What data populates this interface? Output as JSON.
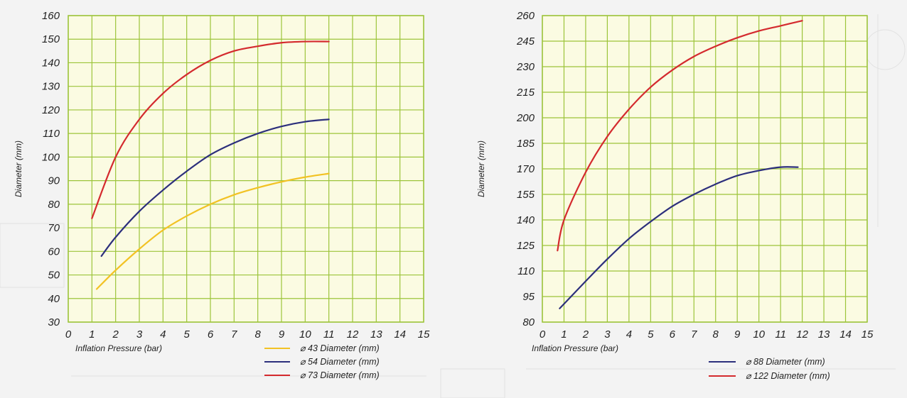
{
  "chart_data": [
    {
      "type": "line",
      "xlabel": "Inflation Pressure (bar)",
      "ylabel": "Diameter (mm)",
      "xlim": [
        0,
        15
      ],
      "ylim": [
        30,
        160
      ],
      "xticks": [
        "0",
        "1",
        "2",
        "3",
        "4",
        "5",
        "6",
        "7",
        "8",
        "9",
        "10",
        "11",
        "12",
        "13",
        "14",
        "15"
      ],
      "yticks": [
        "30",
        "40",
        "50",
        "60",
        "70",
        "80",
        "90",
        "100",
        "110",
        "120",
        "130",
        "140",
        "150",
        "160"
      ],
      "grid": true,
      "legend_position": "bottom-right",
      "series": [
        {
          "name": "⌀ 43 Diameter (mm)",
          "color": "#f2c224",
          "x": [
            1.2,
            2,
            3,
            4,
            5,
            6,
            7,
            8,
            9,
            10,
            11
          ],
          "y": [
            44,
            52,
            61,
            69,
            75,
            80,
            84,
            87,
            89.5,
            91.5,
            93
          ]
        },
        {
          "name": "⌀ 54 Diameter (mm)",
          "color": "#2c2f7c",
          "x": [
            1.4,
            2,
            3,
            4,
            5,
            6,
            7,
            8,
            9,
            10,
            11
          ],
          "y": [
            58,
            66,
            77,
            86,
            94,
            101,
            106,
            110,
            113,
            115,
            116
          ]
        },
        {
          "name": "⌀ 73 Diameter (mm)",
          "color": "#d42a2e",
          "x": [
            1,
            2,
            3,
            4,
            5,
            6,
            7,
            8,
            9,
            10,
            11
          ],
          "y": [
            74,
            100,
            116,
            127,
            135,
            141,
            145,
            147,
            148.5,
            149,
            149
          ]
        }
      ]
    },
    {
      "type": "line",
      "xlabel": "Inflation Pressure (bar)",
      "ylabel": "Diameter (mm)",
      "xlim": [
        0,
        15
      ],
      "ylim": [
        80,
        260
      ],
      "xticks": [
        "0",
        "1",
        "2",
        "3",
        "4",
        "5",
        "6",
        "7",
        "8",
        "9",
        "10",
        "11",
        "12",
        "13",
        "14",
        "15"
      ],
      "yticks": [
        "80",
        "95",
        "110",
        "125",
        "140",
        "155",
        "170",
        "185",
        "200",
        "215",
        "230",
        "245",
        "260"
      ],
      "grid": true,
      "legend_position": "bottom-right",
      "series": [
        {
          "name": "⌀ 88   Diameter (mm)",
          "color": "#2c2f7c",
          "x": [
            0.8,
            2,
            3,
            4,
            5,
            6,
            7,
            8,
            9,
            10,
            11,
            11.8
          ],
          "y": [
            88,
            104,
            117,
            129,
            139,
            148,
            155,
            161,
            166,
            169,
            171,
            171
          ]
        },
        {
          "name": "⌀ 122 Diameter (mm)",
          "color": "#d42a2e",
          "x": [
            0.7,
            1,
            2,
            3,
            4,
            5,
            6,
            7,
            8,
            9,
            10,
            11,
            12
          ],
          "y": [
            122,
            140,
            168,
            189,
            205,
            218,
            228,
            236,
            242,
            247,
            251,
            254,
            257
          ]
        }
      ]
    }
  ]
}
